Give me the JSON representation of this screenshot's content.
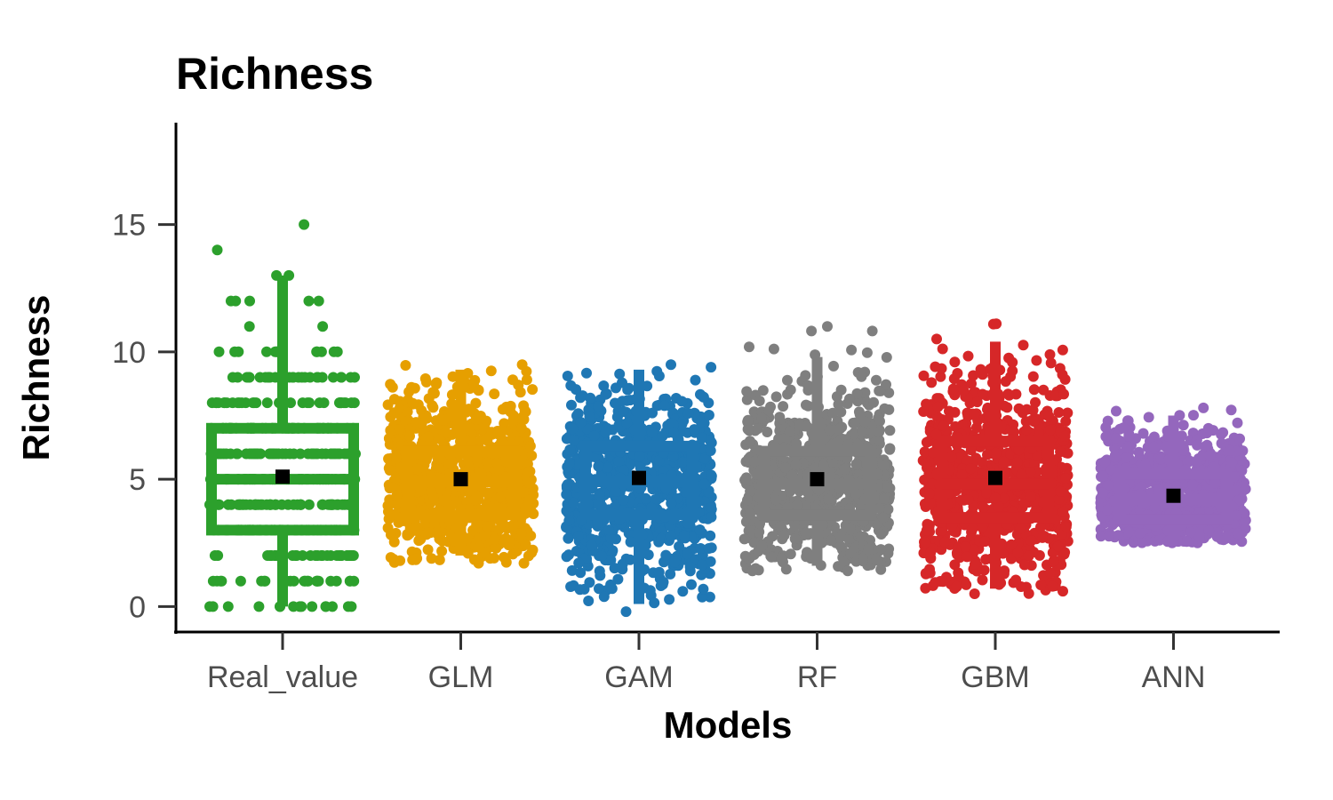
{
  "chart_data": {
    "type": "boxplot-jitter",
    "title": "Richness",
    "xlabel": "Models",
    "ylabel": "Richness",
    "ylim": [
      -1,
      19
    ],
    "yticks": [
      0,
      5,
      10,
      15
    ],
    "grid": false,
    "legend": "none",
    "categories": [
      "Real_value",
      "GLM",
      "GAM",
      "RF",
      "GBM",
      "ANN"
    ],
    "colors": [
      "#2ca02c",
      "#e69f00",
      "#1f77b4",
      "#7f7f7f",
      "#d62728",
      "#9467bd"
    ],
    "mean_marker_color": "#000000",
    "series": [
      {
        "category": "Real_value",
        "min": 0,
        "q1": 3,
        "median": 5,
        "q3": 7,
        "max": 13,
        "mean": 5.1,
        "point_range": [
          0,
          15
        ],
        "discrete": true
      },
      {
        "category": "GLM",
        "min": 2.0,
        "q1": 3.6,
        "median": 4.9,
        "q3": 6.1,
        "max": 9.3,
        "mean": 5.0,
        "point_range": [
          1.7,
          9.5
        ],
        "discrete": false
      },
      {
        "category": "GAM",
        "min": 0.1,
        "q1": 3.6,
        "median": 4.9,
        "q3": 6.3,
        "max": 9.3,
        "mean": 5.05,
        "point_range": [
          -0.2,
          9.5
        ],
        "discrete": false
      },
      {
        "category": "RF",
        "min": 1.6,
        "q1": 3.6,
        "median": 4.8,
        "q3": 6.1,
        "max": 9.8,
        "mean": 5.0,
        "point_range": [
          1.4,
          11.0
        ],
        "discrete": false
      },
      {
        "category": "GBM",
        "min": 0.7,
        "q1": 3.5,
        "median": 4.8,
        "q3": 6.5,
        "max": 10.4,
        "mean": 5.05,
        "point_range": [
          0.5,
          11.1
        ],
        "discrete": false
      },
      {
        "category": "ANN",
        "min": 2.6,
        "q1": 3.4,
        "median": 4.2,
        "q3": 5.2,
        "max": 7.5,
        "mean": 4.35,
        "point_range": [
          2.5,
          7.8
        ],
        "discrete": false
      }
    ]
  }
}
